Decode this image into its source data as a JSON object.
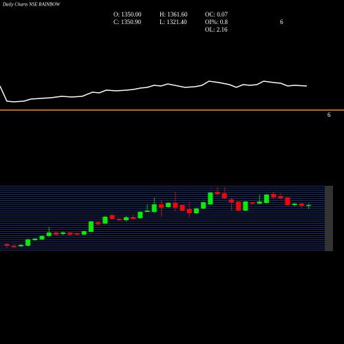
{
  "chart_data": [
    {
      "type": "candlestick",
      "title": "Daily Charts NSE RAINBOW",
      "info": [
        "O: 1350.00",
        "C: 1350.90",
        "H: 1361.60",
        "L: 1321.40",
        "OC: 0.07",
        "OI%: 0.8",
        "OL: 2.16",
        "6"
      ],
      "up_color": "#00ee00",
      "down_color": "#ff0000",
      "ylim": [
        1016,
        1491
      ],
      "open": [
        1066,
        1056,
        1051,
        1056,
        1096,
        1101,
        1126,
        1151,
        1141,
        1151,
        1146,
        1136,
        1156,
        1226,
        1216,
        1276,
        1251,
        1241,
        1261,
        1256,
        1301,
        1301,
        1356,
        1336,
        1366,
        1351,
        1321,
        1291,
        1326,
        1356,
        1446,
        1436,
        1391,
        1376,
        1311,
        1371,
        1361,
        1366,
        1431,
        1416,
        1406,
        1351,
        1361,
        1350.0
      ],
      "high": [
        1076,
        1066,
        1066,
        1106,
        1111,
        1131,
        1191,
        1156,
        1161,
        1156,
        1151,
        1166,
        1236,
        1231,
        1271,
        1286,
        1256,
        1271,
        1281,
        1306,
        1356,
        1406,
        1391,
        1371,
        1451,
        1356,
        1376,
        1331,
        1376,
        1446,
        1481,
        1481,
        1406,
        1381,
        1381,
        1376,
        1426,
        1431,
        1446,
        1436,
        1411,
        1366,
        1366,
        1361.6
      ],
      "low": [
        1036,
        1036,
        1046,
        1051,
        1091,
        1096,
        1116,
        1126,
        1131,
        1131,
        1131,
        1131,
        1151,
        1206,
        1211,
        1246,
        1236,
        1231,
        1246,
        1251,
        1301,
        1291,
        1266,
        1331,
        1306,
        1306,
        1261,
        1286,
        1321,
        1351,
        1416,
        1391,
        1311,
        1306,
        1306,
        1356,
        1356,
        1361,
        1401,
        1391,
        1346,
        1341,
        1331,
        1321.4
      ],
      "close": [
        1056,
        1046,
        1061,
        1101,
        1106,
        1126,
        1151,
        1136,
        1151,
        1136,
        1136,
        1161,
        1231,
        1211,
        1266,
        1251,
        1241,
        1261,
        1251,
        1301,
        1311,
        1356,
        1331,
        1366,
        1331,
        1311,
        1291,
        1326,
        1371,
        1441,
        1431,
        1401,
        1371,
        1311,
        1376,
        1361,
        1376,
        1426,
        1406,
        1401,
        1351,
        1361,
        1346,
        1350.9
      ]
    },
    {
      "type": "line",
      "color": "#ffffff",
      "reference_line": 10,
      "reference_color": "#ff8c00",
      "reference_label": "6",
      "xlim": [
        0,
        450
      ],
      "ylim": [
        0,
        60
      ],
      "x": [
        0,
        10,
        20,
        35,
        45,
        60,
        75,
        90,
        105,
        120,
        135,
        145,
        155,
        170,
        185,
        195,
        205,
        215,
        225,
        235,
        245,
        255,
        270,
        285,
        295,
        305,
        320,
        335,
        345,
        355,
        365,
        375,
        385,
        400,
        410,
        420,
        430,
        448
      ],
      "values": [
        45,
        23,
        22,
        23,
        26,
        27,
        28,
        30,
        29,
        30,
        36,
        35,
        39,
        38,
        39,
        40,
        42,
        43,
        46,
        45,
        48,
        46,
        43,
        44,
        46,
        52,
        50,
        47,
        43,
        47,
        46,
        47,
        52,
        50,
        49,
        45,
        46,
        45
      ]
    }
  ]
}
